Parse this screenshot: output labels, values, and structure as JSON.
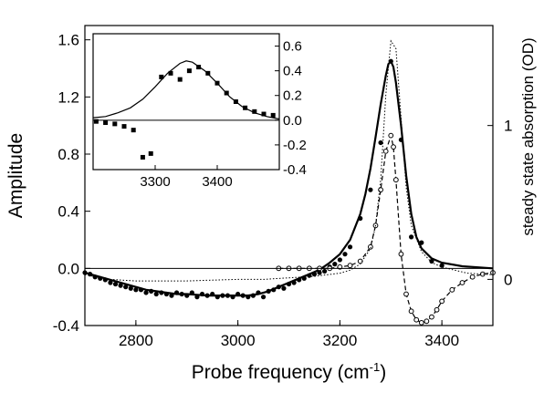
{
  "chart_data": [
    {
      "type": "line",
      "xlabel": "Probe frequency (cm",
      "xlabel_superscript": "-1",
      "xlabel_close": ")",
      "ylabel": "Amplitude",
      "y2label": "steady state absorption (OD)",
      "xlim": [
        2700,
        3500
      ],
      "ylim": [
        -0.4,
        1.7
      ],
      "y2lim": [
        -0.3,
        1.65
      ],
      "xticks": [
        2800,
        3000,
        3200,
        3400
      ],
      "yticks": [
        -0.4,
        0.0,
        0.4,
        0.8,
        1.2,
        1.6
      ],
      "y2ticks": [
        0,
        1
      ],
      "xtick_labels": [
        "2800",
        "3000",
        "3200",
        "3400"
      ],
      "ytick_labels": [
        "-0.4",
        "0.0",
        "0.4",
        "0.8",
        "1.2",
        "1.6"
      ],
      "y2tick_labels": [
        "0",
        "1"
      ],
      "zero_line": true,
      "grid": false,
      "series": [
        {
          "style": "solid-line",
          "x": [
            2700,
            2720,
            2740,
            2760,
            2780,
            2800,
            2820,
            2840,
            2860,
            2880,
            2900,
            2920,
            2940,
            2960,
            2980,
            3000,
            3020,
            3040,
            3060,
            3080,
            3100,
            3120,
            3140,
            3160,
            3180,
            3200,
            3220,
            3240,
            3250,
            3260,
            3270,
            3280,
            3290,
            3295,
            3300,
            3305,
            3310,
            3320,
            3330,
            3340,
            3350,
            3360,
            3380,
            3400,
            3440,
            3500
          ],
          "y": [
            -0.03,
            -0.05,
            -0.07,
            -0.09,
            -0.11,
            -0.13,
            -0.15,
            -0.16,
            -0.17,
            -0.18,
            -0.18,
            -0.185,
            -0.19,
            -0.19,
            -0.19,
            -0.19,
            -0.19,
            -0.18,
            -0.16,
            -0.13,
            -0.1,
            -0.07,
            -0.04,
            -0.01,
            0.04,
            0.1,
            0.2,
            0.38,
            0.52,
            0.7,
            0.92,
            1.15,
            1.35,
            1.43,
            1.45,
            1.41,
            1.3,
            1.0,
            0.65,
            0.38,
            0.22,
            0.14,
            0.07,
            0.04,
            0.015,
            0.0
          ]
        },
        {
          "style": "filled-circles",
          "x": [
            2700,
            2710,
            2720,
            2730,
            2740,
            2750,
            2760,
            2770,
            2780,
            2790,
            2800,
            2810,
            2820,
            2830,
            2840,
            2850,
            2860,
            2870,
            2880,
            2890,
            2900,
            2910,
            2920,
            2930,
            2940,
            2950,
            2960,
            2970,
            2980,
            2990,
            3000,
            3010,
            3020,
            3030,
            3040,
            3050,
            3060,
            3070,
            3080,
            3090,
            3100,
            3110,
            3120,
            3130,
            3140,
            3150,
            3160,
            3170,
            3180,
            3190,
            3200,
            3210,
            3220,
            3240,
            3260,
            3280,
            3300,
            3320,
            3340,
            3360,
            3380,
            3400
          ],
          "y": [
            -0.03,
            -0.04,
            -0.06,
            -0.07,
            -0.08,
            -0.1,
            -0.11,
            -0.12,
            -0.13,
            -0.14,
            -0.15,
            -0.15,
            -0.17,
            -0.16,
            -0.18,
            -0.17,
            -0.18,
            -0.19,
            -0.17,
            -0.18,
            -0.19,
            -0.17,
            -0.2,
            -0.18,
            -0.19,
            -0.18,
            -0.2,
            -0.19,
            -0.19,
            -0.2,
            -0.18,
            -0.19,
            -0.2,
            -0.19,
            -0.17,
            -0.2,
            -0.16,
            -0.15,
            -0.13,
            -0.14,
            -0.11,
            -0.1,
            -0.08,
            -0.07,
            -0.05,
            -0.04,
            -0.03,
            -0.02,
            0.01,
            0.03,
            0.06,
            0.1,
            0.15,
            0.35,
            0.55,
            0.88,
            1.45,
            0.9,
            0.22,
            0.18,
            0.05,
            0.02
          ]
        },
        {
          "style": "dashed-open-circles",
          "x": [
            3080,
            3100,
            3120,
            3140,
            3160,
            3180,
            3200,
            3220,
            3240,
            3260,
            3270,
            3280,
            3290,
            3300,
            3305,
            3310,
            3320,
            3330,
            3340,
            3350,
            3360,
            3370,
            3380,
            3390,
            3400,
            3420,
            3440,
            3460,
            3480,
            3500
          ],
          "y": [
            0.0,
            0.0,
            0.0,
            0.0,
            0.0,
            0.0,
            0.01,
            0.02,
            0.05,
            0.15,
            0.3,
            0.55,
            0.82,
            0.93,
            0.85,
            0.62,
            0.1,
            -0.18,
            -0.3,
            -0.36,
            -0.38,
            -0.37,
            -0.34,
            -0.29,
            -0.23,
            -0.15,
            -0.1,
            -0.06,
            -0.04,
            -0.03
          ]
        },
        {
          "style": "dotted-line",
          "axis": "right",
          "x": [
            2700,
            2750,
            2800,
            2850,
            2900,
            2950,
            3000,
            3050,
            3100,
            3150,
            3200,
            3220,
            3240,
            3260,
            3270,
            3280,
            3290,
            3300,
            3310,
            3320,
            3330,
            3340,
            3360,
            3380,
            3400,
            3450,
            3500
          ],
          "y": [
            0.03,
            0.0,
            -0.01,
            -0.01,
            -0.01,
            -0.005,
            0.0,
            0.0,
            0.01,
            0.02,
            0.04,
            0.06,
            0.1,
            0.2,
            0.35,
            0.65,
            1.2,
            1.55,
            1.5,
            1.05,
            0.6,
            0.35,
            0.18,
            0.11,
            0.08,
            0.04,
            0.03
          ]
        }
      ]
    },
    {
      "type": "scatter",
      "inset": true,
      "xlim": [
        3200,
        3500
      ],
      "ylim": [
        -0.4,
        0.7
      ],
      "xticks": [
        3300,
        3400
      ],
      "yticks": [
        -0.4,
        -0.2,
        0.0,
        0.2,
        0.4,
        0.6
      ],
      "xtick_labels": [
        "3300",
        "3400"
      ],
      "ytick_labels": [
        "-0.4",
        "-0.2",
        "0.0",
        "0.2",
        "0.4",
        "0.6"
      ],
      "y_axis_side": "right",
      "zero_line": true,
      "series": [
        {
          "style": "solid-line",
          "x": [
            3200,
            3220,
            3240,
            3260,
            3280,
            3300,
            3320,
            3340,
            3350,
            3360,
            3380,
            3400,
            3420,
            3440,
            3460,
            3480,
            3500
          ],
          "y": [
            0.02,
            0.03,
            0.06,
            0.1,
            0.17,
            0.27,
            0.38,
            0.46,
            0.48,
            0.47,
            0.4,
            0.3,
            0.19,
            0.11,
            0.06,
            0.03,
            0.01
          ]
        },
        {
          "style": "filled-squares",
          "x": [
            3205,
            3220,
            3235,
            3250,
            3265,
            3280,
            3293,
            3310,
            3325,
            3340,
            3355,
            3370,
            3385,
            3400,
            3415,
            3430,
            3445,
            3460,
            3475,
            3490
          ],
          "y": [
            -0.01,
            -0.02,
            -0.03,
            -0.05,
            -0.08,
            -0.3,
            -0.27,
            0.35,
            0.38,
            0.33,
            0.4,
            0.43,
            0.38,
            0.3,
            0.22,
            0.15,
            0.1,
            0.07,
            0.05,
            0.04
          ]
        }
      ]
    }
  ]
}
